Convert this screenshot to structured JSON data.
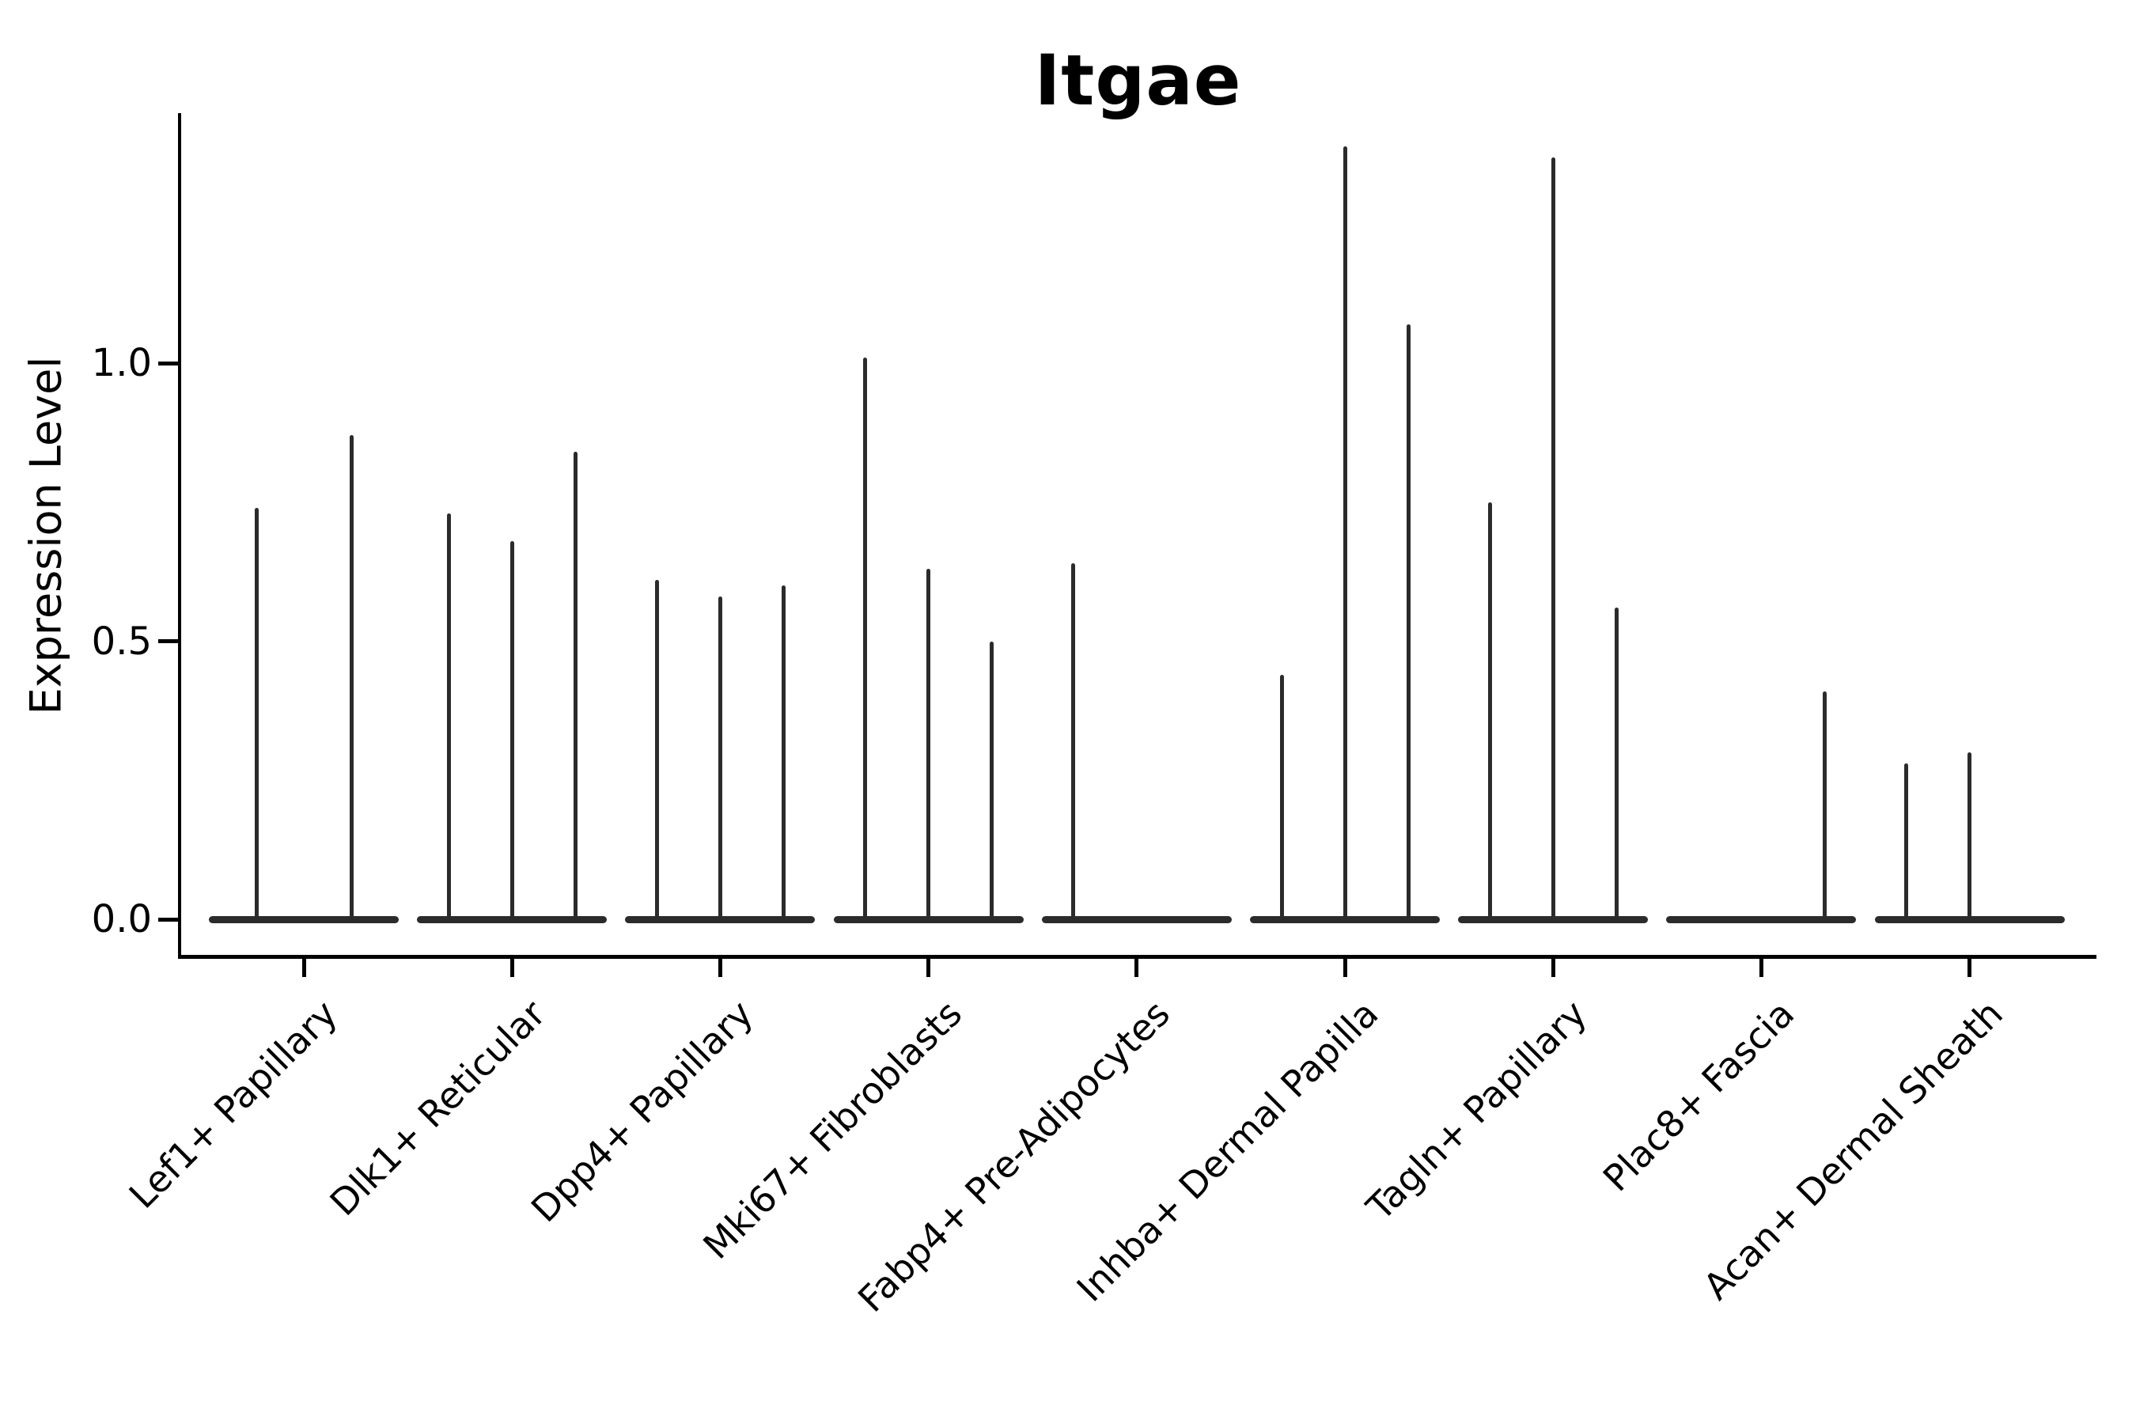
{
  "chart_data": {
    "type": "violin",
    "title": "Itgae",
    "ylabel": "Expression Level",
    "xlabel": "",
    "grid": false,
    "legend": "none",
    "ylim": [
      0,
      1.45
    ],
    "ytick_labels": [
      "0.0",
      "0.5",
      "1.0"
    ],
    "ytick_values": [
      0.0,
      0.5,
      1.0
    ],
    "categories": [
      "Lef1+ Papillary",
      "Dlk1+ Reticular",
      "Dpp4+ Papillary",
      "Mki67+ Fibroblasts",
      "Fabp4+ Pre-Adipocytes",
      "Inhba+ Dermal Papilla",
      "Tagln+ Papillary",
      "Plac8+ Fascia",
      "Acan+ Dermal Sheath"
    ],
    "groups": [
      {
        "category": "Lef1+ Papillary",
        "n_violins": 2,
        "violin_max": [
          0.74,
          0.87
        ]
      },
      {
        "category": "Dlk1+ Reticular",
        "n_violins": 3,
        "violin_max": [
          0.73,
          0.68,
          0.84
        ]
      },
      {
        "category": "Dpp4+ Papillary",
        "n_violins": 3,
        "violin_max": [
          0.61,
          0.58,
          0.6
        ]
      },
      {
        "category": "Mki67+ Fibroblasts",
        "n_violins": 3,
        "violin_max": [
          1.01,
          0.63,
          0.5
        ]
      },
      {
        "category": "Fabp4+ Pre-Adipocytes",
        "n_violins": 3,
        "violin_max": [
          0.64,
          0.0,
          0.0
        ]
      },
      {
        "category": "Inhba+ Dermal Papilla",
        "n_violins": 3,
        "violin_max": [
          0.44,
          1.39,
          1.07
        ]
      },
      {
        "category": "Tagln+ Papillary",
        "n_violins": 3,
        "violin_max": [
          0.75,
          1.37,
          0.56
        ]
      },
      {
        "category": "Plac8+ Fascia",
        "n_violins": 3,
        "violin_max": [
          0.0,
          0.0,
          0.41
        ]
      },
      {
        "category": "Acan+ Dermal Sheath",
        "n_violins": 3,
        "violin_max": [
          0.28,
          0.3,
          0.0
        ]
      }
    ],
    "colors": {
      "violin": "#2b2b2b",
      "spine": "#000000",
      "text": "#000000",
      "background": "#ffffff"
    }
  }
}
